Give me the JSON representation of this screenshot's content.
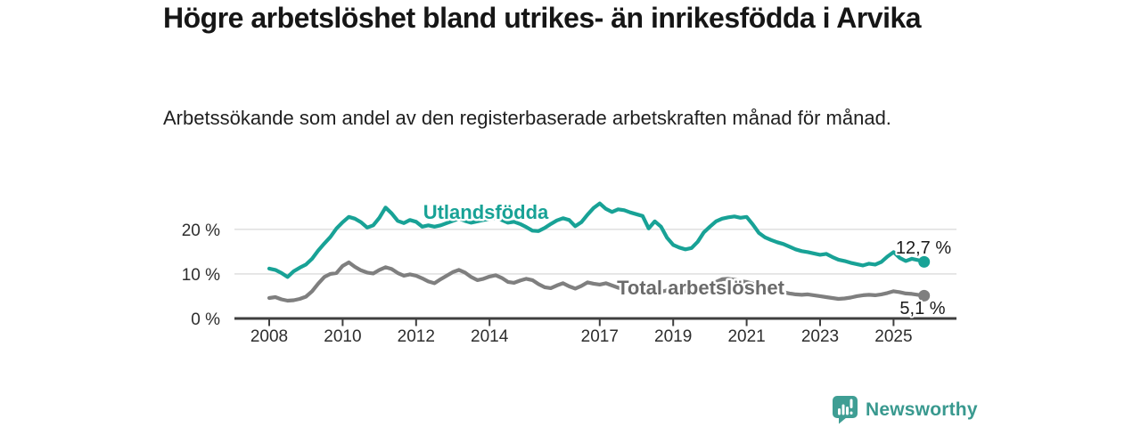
{
  "header": {
    "title": "Högre arbetslöshet bland utrikes- än inrikesfödda i Arvika",
    "subtitle": "Arbetssökande som andel av den registerbaserade arbetskraften månad för månad."
  },
  "footer": {
    "brand": "Newsworthy"
  },
  "colors": {
    "accent_teal": "#18a296",
    "line_gray": "#7f7f7f",
    "label_gray": "#6b6b6b",
    "axis": "#3f3f3f",
    "grid": "#dcdcdc",
    "annotation_text": "#1a1a1a",
    "brand_teal": "#3f9e94"
  },
  "chart_data": {
    "type": "line",
    "title": "Högre arbetslöshet bland utrikes- än inrikesfödda i Arvika",
    "subtitle": "Arbetssökande som andel av den registerbaserade arbetskraften månad för månad.",
    "unit": "%",
    "x_start": 2008.0,
    "x_step": 0.16666667,
    "xlim": [
      2007.06,
      2026.72
    ],
    "ylim": [
      0,
      27
    ],
    "grid": "horizontal-only",
    "legend_position": "inline-labels",
    "x_ticks": [
      {
        "value": 2008,
        "label": "2008"
      },
      {
        "value": 2010,
        "label": "2010"
      },
      {
        "value": 2012,
        "label": "2012"
      },
      {
        "value": 2014,
        "label": "2014"
      },
      {
        "value": 2017,
        "label": "2017"
      },
      {
        "value": 2019,
        "label": "2019"
      },
      {
        "value": 2021,
        "label": "2021"
      },
      {
        "value": 2023,
        "label": "2023"
      },
      {
        "value": 2025,
        "label": "2025"
      }
    ],
    "y_ticks": [
      {
        "value": 0,
        "label": "0 %"
      },
      {
        "value": 10,
        "label": "10 %"
      },
      {
        "value": 20,
        "label": "20 %"
      }
    ],
    "series": [
      {
        "id": "total-arbetsloshet",
        "name": "Total arbetslöshet",
        "color": "#7f7f7f",
        "label_color": "#6b6b6b",
        "end_value": 5.1,
        "end_label": "5,1 %",
        "values": [
          4.6,
          4.8,
          4.3,
          4.0,
          4.1,
          4.4,
          4.9,
          6.1,
          7.8,
          9.3,
          10.0,
          10.2,
          11.8,
          12.6,
          11.6,
          10.8,
          10.3,
          10.1,
          10.9,
          11.5,
          11.1,
          10.2,
          9.6,
          9.9,
          9.6,
          9.0,
          8.3,
          7.9,
          8.8,
          9.6,
          10.4,
          10.9,
          10.3,
          9.3,
          8.6,
          8.9,
          9.4,
          9.7,
          9.1,
          8.2,
          8.0,
          8.5,
          8.9,
          8.6,
          7.7,
          7.0,
          6.8,
          7.4,
          7.9,
          7.2,
          6.7,
          7.3,
          8.1,
          7.8,
          7.6,
          7.9,
          7.4,
          6.9,
          6.6,
          6.9,
          7.1,
          6.8,
          6.3,
          6.1,
          6.0,
          6.3,
          6.5,
          6.3,
          6.1,
          6.2,
          6.4,
          6.8,
          7.3,
          8.2,
          8.8,
          8.9,
          8.7,
          8.4,
          8.2,
          7.8,
          7.3,
          6.9,
          6.5,
          6.2,
          5.9,
          5.6,
          5.4,
          5.3,
          5.4,
          5.2,
          5.0,
          4.8,
          4.6,
          4.4,
          4.5,
          4.7,
          5.0,
          5.2,
          5.3,
          5.2,
          5.4,
          5.7,
          6.1,
          5.9,
          5.6,
          5.5,
          5.3,
          5.1
        ]
      },
      {
        "id": "utlandsfodda",
        "name": "Utlandsfödda",
        "color": "#18a296",
        "label_color": "#18a296",
        "end_value": 12.7,
        "end_label": "12,7 %",
        "values": [
          11.2,
          10.9,
          10.2,
          9.3,
          10.6,
          11.4,
          12.1,
          13.4,
          15.2,
          16.8,
          18.3,
          20.2,
          21.6,
          22.8,
          22.4,
          21.6,
          20.4,
          20.9,
          22.6,
          24.9,
          23.6,
          21.9,
          21.4,
          22.1,
          21.7,
          20.6,
          20.9,
          20.6,
          20.9,
          21.4,
          21.9,
          22.4,
          21.9,
          21.5,
          21.8,
          22.1,
          22.3,
          22.6,
          22.1,
          21.5,
          21.7,
          21.2,
          20.5,
          19.7,
          19.6,
          20.3,
          21.2,
          22.0,
          22.5,
          22.1,
          20.7,
          21.6,
          23.3,
          24.8,
          25.8,
          24.6,
          23.9,
          24.5,
          24.3,
          23.8,
          23.4,
          23.0,
          20.2,
          21.8,
          20.6,
          18.1,
          16.5,
          15.9,
          15.5,
          15.8,
          17.2,
          19.3,
          20.6,
          21.8,
          22.4,
          22.7,
          22.9,
          22.6,
          22.8,
          21.1,
          19.2,
          18.2,
          17.6,
          17.1,
          16.7,
          16.1,
          15.5,
          15.1,
          14.9,
          14.6,
          14.3,
          14.5,
          13.8,
          13.2,
          12.9,
          12.5,
          12.2,
          11.9,
          12.3,
          12.1,
          12.7,
          13.9,
          14.9,
          13.6,
          12.9,
          13.4,
          13.1,
          12.7
        ]
      }
    ]
  }
}
